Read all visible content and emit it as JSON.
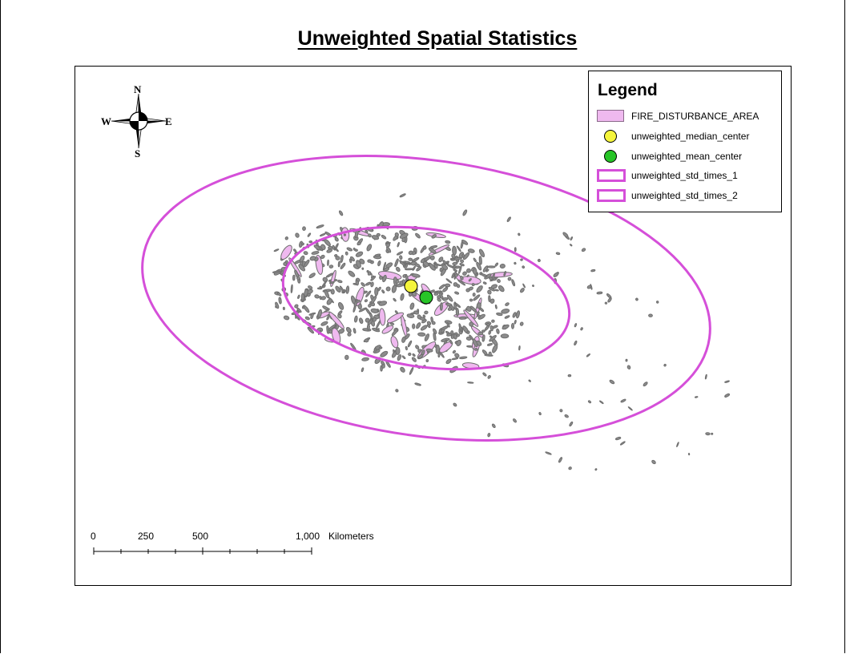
{
  "title": "Unweighted Spatial Statistics",
  "legend": {
    "title": "Legend",
    "items": [
      {
        "label": "FIRE_DISTURBANCE_AREA",
        "symbol": "polygon",
        "color": "#efb9ef"
      },
      {
        "label": "unweighted_median_center",
        "symbol": "circle",
        "color": "#f5f53c"
      },
      {
        "label": "unweighted_mean_center",
        "symbol": "circle",
        "color": "#27c427"
      },
      {
        "label": "unweighted_std_times_1",
        "symbol": "ellipse-outline",
        "color": "#d54fd9"
      },
      {
        "label": "unweighted_std_times_2",
        "symbol": "ellipse-outline",
        "color": "#d54fd9"
      }
    ]
  },
  "compass": {
    "n": "N",
    "s": "S",
    "e": "E",
    "w": "W",
    "icon": "north-arrow-icon"
  },
  "scalebar": {
    "labels": [
      "0",
      "250",
      "500",
      "1,000"
    ],
    "unit": "Kilometers"
  },
  "colors": {
    "fire_fill": "#efb9ef",
    "fire_outline": "#6e6e6e",
    "ellipse": "#d54fd9",
    "median": "#f5f53c",
    "mean": "#27c427"
  }
}
